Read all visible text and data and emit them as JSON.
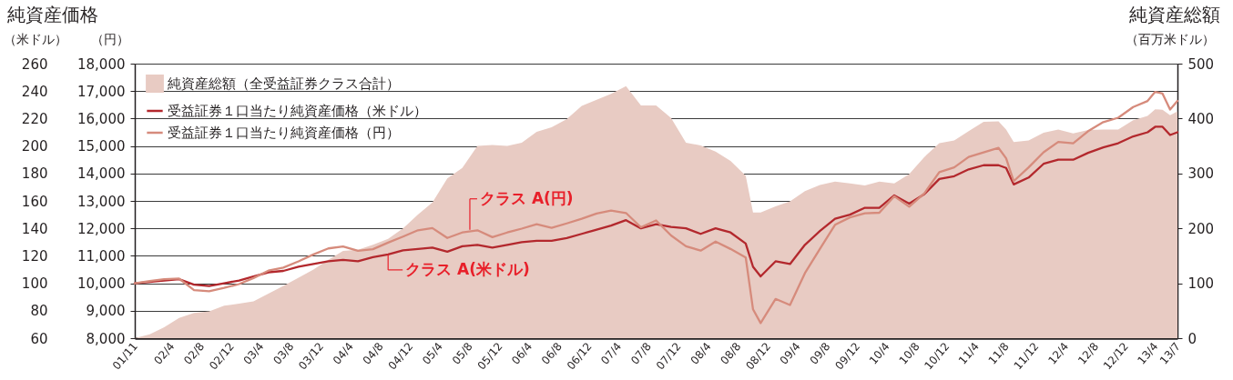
{
  "chart_data": {
    "type": "line",
    "title": "純資産価格",
    "subtitle": "純資産総額",
    "ylabel": "（米ドル）",
    "y2label": "（円）",
    "y3label": "（百万米ドル）",
    "ylim": [
      60,
      260
    ],
    "yticks": [
      60,
      80,
      100,
      120,
      140,
      160,
      180,
      200,
      220,
      240,
      260
    ],
    "y2lim": [
      8000,
      18000
    ],
    "y2ticks": [
      {
        "value": 8000,
        "label": "8,000"
      },
      {
        "value": 9000,
        "label": "9,000"
      },
      {
        "value": 10000,
        "label": "10,000"
      },
      {
        "value": 11000,
        "label": "11,000"
      },
      {
        "value": 12000,
        "label": "12,000"
      },
      {
        "value": 13000,
        "label": "13,000"
      },
      {
        "value": 14000,
        "label": "14,000"
      },
      {
        "value": 15000,
        "label": "15,000"
      },
      {
        "value": 16000,
        "label": "16,000"
      },
      {
        "value": 17000,
        "label": "17,000"
      },
      {
        "value": 18000,
        "label": "18,000"
      }
    ],
    "y3lim": [
      0,
      500
    ],
    "y3ticks": [
      0,
      100,
      200,
      300,
      400,
      500
    ],
    "xlim": [
      "2001-11",
      "2013-07"
    ],
    "xticks": [
      {
        "value": "2001-11",
        "label": "01/11"
      },
      {
        "value": "2002-04",
        "label": "02/4"
      },
      {
        "value": "2002-08",
        "label": "02/8"
      },
      {
        "value": "2002-12",
        "label": "02/12"
      },
      {
        "value": "2003-04",
        "label": "03/4"
      },
      {
        "value": "2003-08",
        "label": "03/8"
      },
      {
        "value": "2003-12",
        "label": "03/12"
      },
      {
        "value": "2004-04",
        "label": "04/4"
      },
      {
        "value": "2004-08",
        "label": "04/8"
      },
      {
        "value": "2004-12",
        "label": "04/12"
      },
      {
        "value": "2005-04",
        "label": "05/4"
      },
      {
        "value": "2005-08",
        "label": "05/8"
      },
      {
        "value": "2005-12",
        "label": "05/12"
      },
      {
        "value": "2006-04",
        "label": "06/4"
      },
      {
        "value": "2006-08",
        "label": "06/8"
      },
      {
        "value": "2006-12",
        "label": "06/12"
      },
      {
        "value": "2007-04",
        "label": "07/4"
      },
      {
        "value": "2007-08",
        "label": "07/8"
      },
      {
        "value": "2007-12",
        "label": "07/12"
      },
      {
        "value": "2008-04",
        "label": "08/4"
      },
      {
        "value": "2008-08",
        "label": "08/8"
      },
      {
        "value": "2008-12",
        "label": "08/12"
      },
      {
        "value": "2009-04",
        "label": "09/4"
      },
      {
        "value": "2009-08",
        "label": "09/8"
      },
      {
        "value": "2009-12",
        "label": "09/12"
      },
      {
        "value": "2010-04",
        "label": "10/4"
      },
      {
        "value": "2010-08",
        "label": "10/8"
      },
      {
        "value": "2010-12",
        "label": "10/12"
      },
      {
        "value": "2011-04",
        "label": "11/4"
      },
      {
        "value": "2011-08",
        "label": "11/8"
      },
      {
        "value": "2011-12",
        "label": "11/12"
      },
      {
        "value": "2012-04",
        "label": "12/4"
      },
      {
        "value": "2012-08",
        "label": "12/8"
      },
      {
        "value": "2012-12",
        "label": "12/12"
      },
      {
        "value": "2013-04",
        "label": "13/4"
      },
      {
        "value": "2013-07",
        "label": "13/7"
      }
    ],
    "x": [
      "2001-11",
      "2002-01",
      "2002-03",
      "2002-05",
      "2002-07",
      "2002-09",
      "2002-11",
      "2003-01",
      "2003-03",
      "2003-05",
      "2003-07",
      "2003-09",
      "2003-11",
      "2004-01",
      "2004-03",
      "2004-05",
      "2004-07",
      "2004-09",
      "2004-11",
      "2005-01",
      "2005-03",
      "2005-05",
      "2005-07",
      "2005-09",
      "2005-11",
      "2006-01",
      "2006-03",
      "2006-05",
      "2006-07",
      "2006-09",
      "2006-11",
      "2007-01",
      "2007-03",
      "2007-05",
      "2007-07",
      "2007-09",
      "2007-11",
      "2008-01",
      "2008-03",
      "2008-05",
      "2008-07",
      "2008-09",
      "2008-10",
      "2008-11",
      "2009-01",
      "2009-03",
      "2009-05",
      "2009-07",
      "2009-09",
      "2009-11",
      "2010-01",
      "2010-03",
      "2010-05",
      "2010-07",
      "2010-09",
      "2010-11",
      "2011-01",
      "2011-03",
      "2011-05",
      "2011-07",
      "2011-08",
      "2011-09",
      "2011-11",
      "2012-01",
      "2012-03",
      "2012-05",
      "2012-07",
      "2012-09",
      "2012-11",
      "2013-01",
      "2013-03",
      "2013-04",
      "2013-05",
      "2013-06",
      "2013-07"
    ],
    "series": [
      {
        "name": "純資産総額（全受益証券クラス合計）",
        "type": "area",
        "axis": "y3",
        "color": "#e8cbc3",
        "values": [
          0,
          7,
          20,
          37,
          46,
          49,
          59,
          63,
          67,
          81,
          95,
          110,
          125,
          143,
          159,
          161,
          170,
          181,
          200,
          225,
          247,
          291,
          310,
          350,
          352,
          350,
          356,
          376,
          384,
          399,
          423,
          434,
          445,
          459,
          424,
          424,
          401,
          356,
          351,
          340,
          323,
          296,
          229,
          229,
          240,
          249,
          268,
          279,
          285,
          282,
          278,
          285,
          282,
          299,
          330,
          355,
          360,
          377,
          394,
          395,
          380,
          357,
          360,
          374,
          380,
          373,
          379,
          380,
          380,
          397,
          405,
          417,
          416,
          406,
          413
        ]
      },
      {
        "name": "受益証券１口当たり純資産価格（米ドル）",
        "type": "line",
        "color": "#b3282d",
        "values": [
          100,
          101,
          102,
          103,
          99,
          98,
          100,
          102,
          105,
          108,
          109,
          112,
          114,
          116,
          117,
          116,
          119,
          121,
          124,
          125,
          126,
          123,
          127,
          128,
          126,
          128,
          130,
          131,
          131,
          133,
          136,
          139,
          142,
          146,
          140,
          143,
          141,
          140,
          136,
          140,
          137,
          129,
          112,
          105,
          116,
          114,
          128,
          138,
          147,
          150,
          155,
          155,
          164,
          158,
          165,
          176,
          178,
          183,
          186,
          186,
          184,
          172,
          177,
          187,
          190,
          190,
          195,
          199,
          202,
          207,
          210,
          214,
          214,
          208,
          210
        ]
      },
      {
        "name": "受益証券１口当たり純資産価格（円）",
        "type": "line",
        "axis": "y2",
        "color": "#d68b7c",
        "values": [
          10000,
          10080,
          10150,
          10170,
          9750,
          9710,
          9830,
          9970,
          10190,
          10460,
          10570,
          10800,
          11050,
          11270,
          11340,
          11180,
          11240,
          11480,
          11700,
          11930,
          12010,
          11650,
          11850,
          11930,
          11680,
          11850,
          11990,
          12150,
          12020,
          12180,
          12350,
          12540,
          12650,
          12560,
          12040,
          12290,
          11740,
          11350,
          11190,
          11520,
          11250,
          10940,
          9050,
          8550,
          9430,
          9210,
          10370,
          11250,
          12130,
          12400,
          12550,
          12570,
          13170,
          12790,
          13280,
          14050,
          14220,
          14600,
          14770,
          14930,
          14550,
          13720,
          14220,
          14770,
          15150,
          15100,
          15540,
          15870,
          16030,
          16420,
          16640,
          16970,
          16910,
          16330,
          16640
        ]
      }
    ],
    "annotations": [
      {
        "text": "クラス A(円)",
        "x": "2005-08",
        "y": 139
      },
      {
        "text": "クラス A(米ドル)",
        "x": "2004-09",
        "y": 121
      }
    ],
    "grid": "y",
    "legend": "top left"
  }
}
